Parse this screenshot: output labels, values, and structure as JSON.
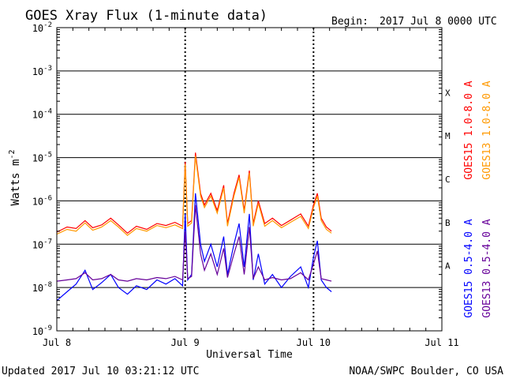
{
  "chart_data": {
    "type": "line",
    "title": "GOES Xray Flux (1-minute data)",
    "begin_label": "Begin:",
    "begin_value": "2017 Jul 8 0000 UTC",
    "ylabel_main": "Watts m",
    "ylabel_sup": "-2",
    "xlabel": "Universal Time",
    "footer_left": "Updated 2017 Jul 10 03:21:12 UTC",
    "footer_right": "NOAA/SWPC Boulder, CO USA",
    "y_scale": "log",
    "ylim_exp": [
      -9,
      -2
    ],
    "y_ticks": [
      {
        "exp": -2,
        "base": "10",
        "sup": "-2"
      },
      {
        "exp": -3,
        "base": "10",
        "sup": "-3"
      },
      {
        "exp": -4,
        "base": "10",
        "sup": "-4"
      },
      {
        "exp": -5,
        "base": "10",
        "sup": "-5"
      },
      {
        "exp": -6,
        "base": "10",
        "sup": "-6"
      },
      {
        "exp": -7,
        "base": "10",
        "sup": "-7"
      },
      {
        "exp": -8,
        "base": "10",
        "sup": "-8"
      },
      {
        "exp": -9,
        "base": "10",
        "sup": "-9"
      }
    ],
    "xlim_days": [
      0,
      3
    ],
    "x_ticks": [
      {
        "day": 0,
        "label": "Jul 8"
      },
      {
        "day": 1,
        "label": "Jul 9"
      },
      {
        "day": 2,
        "label": "Jul 10"
      },
      {
        "day": 3,
        "label": "Jul 11"
      }
    ],
    "flare_classes": [
      {
        "label": "X",
        "exp": -3.5
      },
      {
        "label": "M",
        "exp": -4.5
      },
      {
        "label": "C",
        "exp": -5.5
      },
      {
        "label": "B",
        "exp": -6.5
      },
      {
        "label": "A",
        "exp": -7.5
      }
    ],
    "legend": [
      {
        "label": "GOES15 1.0-8.0 A",
        "color": "#ff0000"
      },
      {
        "label": "GOES13 1.0-8.0 A",
        "color": "#ff9900"
      },
      {
        "label": "GOES15 0.5-4.0 A",
        "color": "#0000ff"
      },
      {
        "label": "GOES13 0.5-4.0 A",
        "color": "#660099"
      }
    ],
    "series": [
      {
        "name": "GOES15 1.0-8.0 A",
        "color": "#ff0000",
        "x_days": [
          0,
          0.08,
          0.15,
          0.22,
          0.28,
          0.35,
          0.42,
          0.48,
          0.55,
          0.62,
          0.7,
          0.78,
          0.85,
          0.92,
          0.98,
          1.0,
          1.02,
          1.05,
          1.08,
          1.12,
          1.15,
          1.2,
          1.25,
          1.3,
          1.33,
          1.38,
          1.42,
          1.46,
          1.5,
          1.53,
          1.57,
          1.62,
          1.68,
          1.75,
          1.82,
          1.9,
          1.96,
          2.0,
          2.03,
          2.06,
          2.1,
          2.14
        ],
        "y": [
          1.9e-07,
          2.5e-07,
          2.3e-07,
          3.5e-07,
          2.4e-07,
          2.8e-07,
          4e-07,
          2.8e-07,
          1.8e-07,
          2.6e-07,
          2.2e-07,
          3e-07,
          2.7e-07,
          3.2e-07,
          2.6e-07,
          8e-06,
          3e-07,
          3.5e-07,
          1.3e-05,
          1.5e-06,
          8e-07,
          1.5e-06,
          6e-07,
          2.3e-06,
          3e-07,
          1.5e-06,
          4e-06,
          6e-07,
          5e-06,
          3e-07,
          1e-06,
          3e-07,
          4e-07,
          2.7e-07,
          3.6e-07,
          5e-07,
          2.6e-07,
          8e-07,
          1.5e-06,
          4e-07,
          2.5e-07,
          2e-07
        ]
      },
      {
        "name": "GOES13 1.0-8.0 A",
        "color": "#ff9900",
        "x_days": [
          0,
          0.08,
          0.15,
          0.22,
          0.28,
          0.35,
          0.42,
          0.48,
          0.55,
          0.62,
          0.7,
          0.78,
          0.85,
          0.92,
          0.98,
          1.0,
          1.02,
          1.05,
          1.08,
          1.12,
          1.15,
          1.2,
          1.25,
          1.3,
          1.33,
          1.38,
          1.42,
          1.46,
          1.5,
          1.53,
          1.57,
          1.62,
          1.68,
          1.75,
          1.82,
          1.9,
          1.96,
          2.0,
          2.03,
          2.06,
          2.1,
          2.14
        ],
        "y": [
          1.7e-07,
          2.2e-07,
          2e-07,
          3.1e-07,
          2.1e-07,
          2.5e-07,
          3.5e-07,
          2.5e-07,
          1.6e-07,
          2.3e-07,
          2e-07,
          2.7e-07,
          2.4e-07,
          2.8e-07,
          2.3e-07,
          7e-06,
          2.6e-07,
          3.1e-07,
          1.1e-05,
          1.3e-06,
          7e-07,
          1.3e-06,
          5.2e-07,
          2e-06,
          2.6e-07,
          1.3e-06,
          3.5e-06,
          5.2e-07,
          4.4e-06,
          2.6e-07,
          8.8e-07,
          2.6e-07,
          3.5e-07,
          2.4e-07,
          3.2e-07,
          4.4e-07,
          2.3e-07,
          7e-07,
          1.3e-06,
          3.5e-07,
          2.2e-07,
          1.8e-07
        ]
      },
      {
        "name": "GOES15 0.5-4.0 A",
        "color": "#0000ff",
        "x_days": [
          0,
          0.08,
          0.15,
          0.22,
          0.28,
          0.35,
          0.42,
          0.48,
          0.55,
          0.62,
          0.7,
          0.78,
          0.85,
          0.92,
          0.98,
          1.0,
          1.02,
          1.05,
          1.08,
          1.12,
          1.15,
          1.2,
          1.25,
          1.3,
          1.33,
          1.38,
          1.42,
          1.46,
          1.5,
          1.53,
          1.57,
          1.62,
          1.68,
          1.75,
          1.82,
          1.9,
          1.96,
          2.0,
          2.03,
          2.06,
          2.1,
          2.14
        ],
        "y": [
          5e-09,
          8e-09,
          1.2e-08,
          2.5e-08,
          9e-09,
          1.3e-08,
          2e-08,
          1e-08,
          7e-09,
          1.1e-08,
          9e-09,
          1.5e-08,
          1.2e-08,
          1.6e-08,
          1.1e-08,
          5e-07,
          1.5e-08,
          2e-08,
          1.5e-06,
          1e-07,
          4e-08,
          1e-07,
          3e-08,
          1.5e-07,
          2e-08,
          1e-07,
          3e-07,
          3e-08,
          5e-07,
          1.5e-08,
          6e-08,
          1.2e-08,
          2e-08,
          1e-08,
          1.8e-08,
          3e-08,
          1e-08,
          5e-08,
          1.2e-07,
          1.5e-08,
          1e-08,
          8e-09
        ]
      },
      {
        "name": "GOES13 0.5-4.0 A",
        "color": "#660099",
        "x_days": [
          0,
          0.08,
          0.15,
          0.22,
          0.28,
          0.35,
          0.42,
          0.48,
          0.55,
          0.62,
          0.7,
          0.78,
          0.85,
          0.92,
          0.98,
          1.0,
          1.02,
          1.05,
          1.08,
          1.12,
          1.15,
          1.2,
          1.25,
          1.3,
          1.33,
          1.38,
          1.42,
          1.46,
          1.5,
          1.53,
          1.57,
          1.62,
          1.68,
          1.75,
          1.82,
          1.9,
          1.96,
          2.0,
          2.03,
          2.06,
          2.1,
          2.14
        ],
        "y": [
          1.4e-08,
          1.5e-08,
          1.6e-08,
          2.2e-08,
          1.5e-08,
          1.6e-08,
          2e-08,
          1.5e-08,
          1.4e-08,
          1.6e-08,
          1.5e-08,
          1.7e-08,
          1.6e-08,
          1.8e-08,
          1.5e-08,
          2e-07,
          1.6e-08,
          1.8e-08,
          8e-07,
          6e-08,
          2.5e-08,
          6e-08,
          2e-08,
          8e-08,
          1.7e-08,
          6e-08,
          1.5e-07,
          2e-08,
          2.5e-07,
          1.6e-08,
          3e-08,
          1.5e-08,
          1.7e-08,
          1.5e-08,
          1.6e-08,
          2.2e-08,
          1.5e-08,
          3.5e-08,
          7e-08,
          1.6e-08,
          1.5e-08,
          1.4e-08
        ]
      }
    ]
  }
}
